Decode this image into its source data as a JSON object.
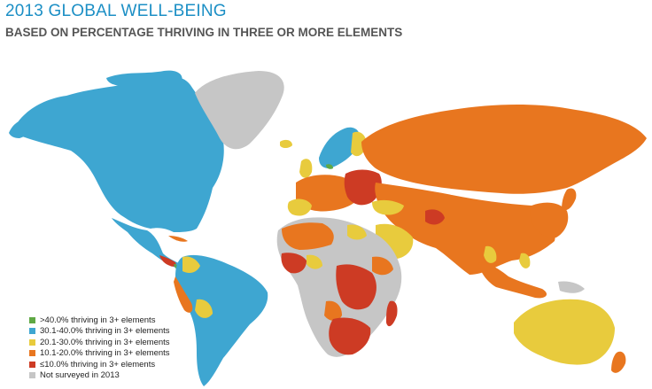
{
  "header": {
    "title": "2013 GLOBAL WELL-BEING",
    "subtitle": "BASED ON PERCENTAGE THRIVING IN THREE OR MORE ELEMENTS"
  },
  "colors": {
    "title": "#1c8fc5",
    "gt40": "#5fa844",
    "b30_40": "#3ea6d1",
    "b20_30": "#e8cb3d",
    "b10_20": "#e8761f",
    "le10": "#cd3b24",
    "not_surveyed": "#c6c6c6",
    "ocean": "#ffffff"
  },
  "legend": {
    "items": [
      {
        "label": ">40.0% thriving in 3+ elements",
        "color": "#5fa844"
      },
      {
        "label": "30.1-40.0% thriving in 3+ elements",
        "color": "#3ea6d1"
      },
      {
        "label": "20.1-30.0% thriving in 3+ elements",
        "color": "#e8cb3d"
      },
      {
        "label": "10.1-20.0% thriving in 3+ elements",
        "color": "#e8761f"
      },
      {
        "label": "≤10.0% thriving in 3+ elements",
        "color": "#cd3b24"
      },
      {
        "label": "Not surveyed in 2013",
        "color": "#c6c6c6"
      }
    ]
  }
}
